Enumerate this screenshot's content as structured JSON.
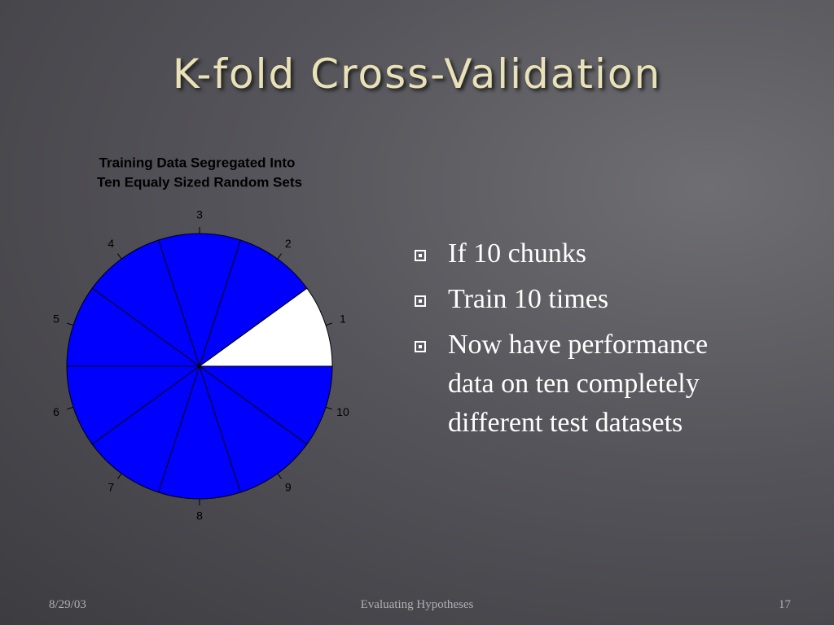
{
  "title": "K-fold Cross-Validation",
  "chart_data": {
    "type": "pie",
    "title": [
      "Training Data Segregated Into",
      "Ten Equaly Sized Random Sets"
    ],
    "categories": [
      "1",
      "2",
      "3",
      "4",
      "5",
      "6",
      "7",
      "8",
      "9",
      "10"
    ],
    "values": [
      10,
      10,
      10,
      10,
      10,
      10,
      10,
      10,
      10,
      10
    ],
    "colors": [
      "#ffffff",
      "#0000ff",
      "#0000ff",
      "#0000ff",
      "#0000ff",
      "#0000ff",
      "#0000ff",
      "#0000ff",
      "#0000ff",
      "#0000ff"
    ]
  },
  "bullets": [
    "If 10 chunks",
    "Train 10 times",
    "Now have performance data on ten completely different test datasets"
  ],
  "footer": {
    "date": "8/29/03",
    "center": "Evaluating Hypotheses",
    "page": "17"
  }
}
